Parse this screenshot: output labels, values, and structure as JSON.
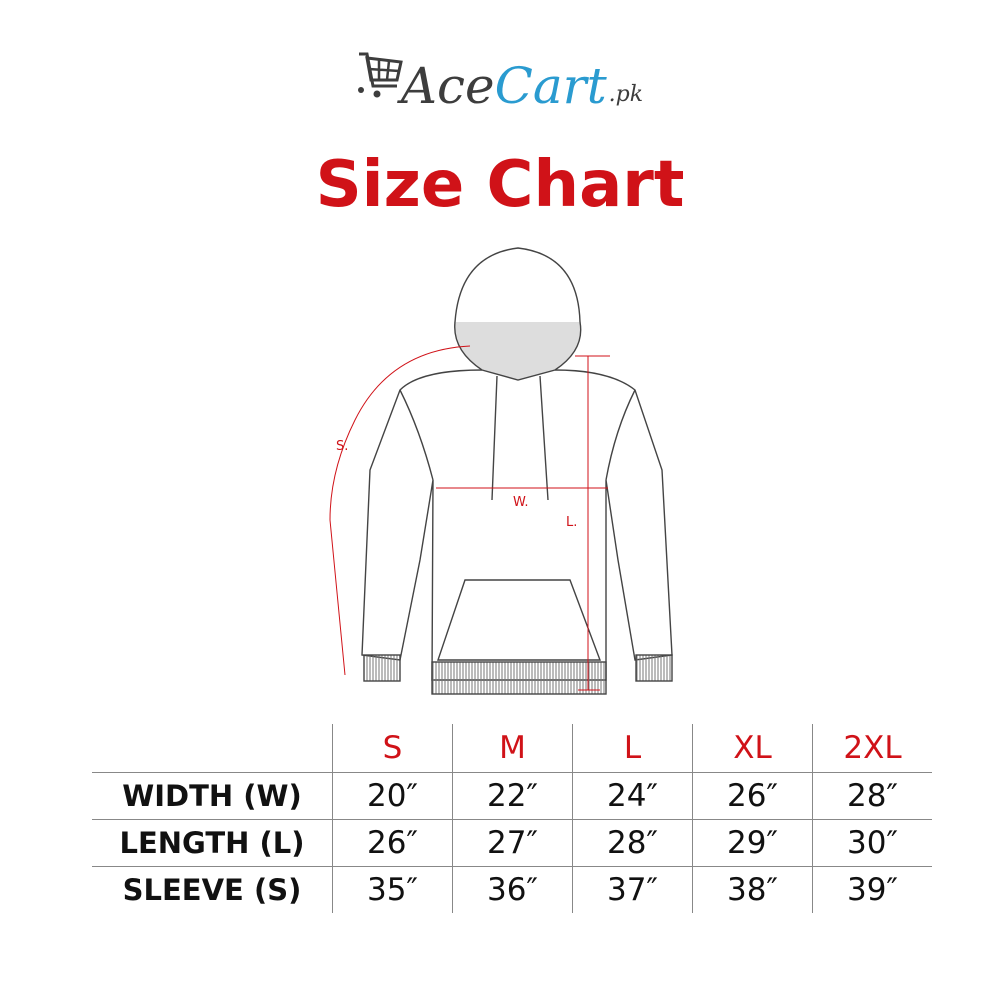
{
  "logo": {
    "part1": "Ace",
    "part2": "Cart",
    "suffix": ".pk",
    "colors": {
      "dark": "#3d3d3d",
      "blue": "#2a9bd0"
    },
    "icon": "shopping-cart-icon"
  },
  "title": "Size Chart",
  "accent_color": "#d01218",
  "diagram": {
    "sleeve_label": "S.",
    "width_label": "W.",
    "length_label": "L."
  },
  "table": {
    "headers": [
      "S",
      "M",
      "L",
      "XL",
      "2XL"
    ],
    "rows": [
      {
        "label": "WIDTH (W)",
        "values": [
          "20″",
          "22″",
          "24″",
          "26″",
          "28″"
        ]
      },
      {
        "label": "LENGTH (L)",
        "values": [
          "26″",
          "27″",
          "28″",
          "29″",
          "30″"
        ]
      },
      {
        "label": "SLEEVE (S)",
        "values": [
          "35″",
          "36″",
          "37″",
          "38″",
          "39″"
        ]
      }
    ]
  }
}
